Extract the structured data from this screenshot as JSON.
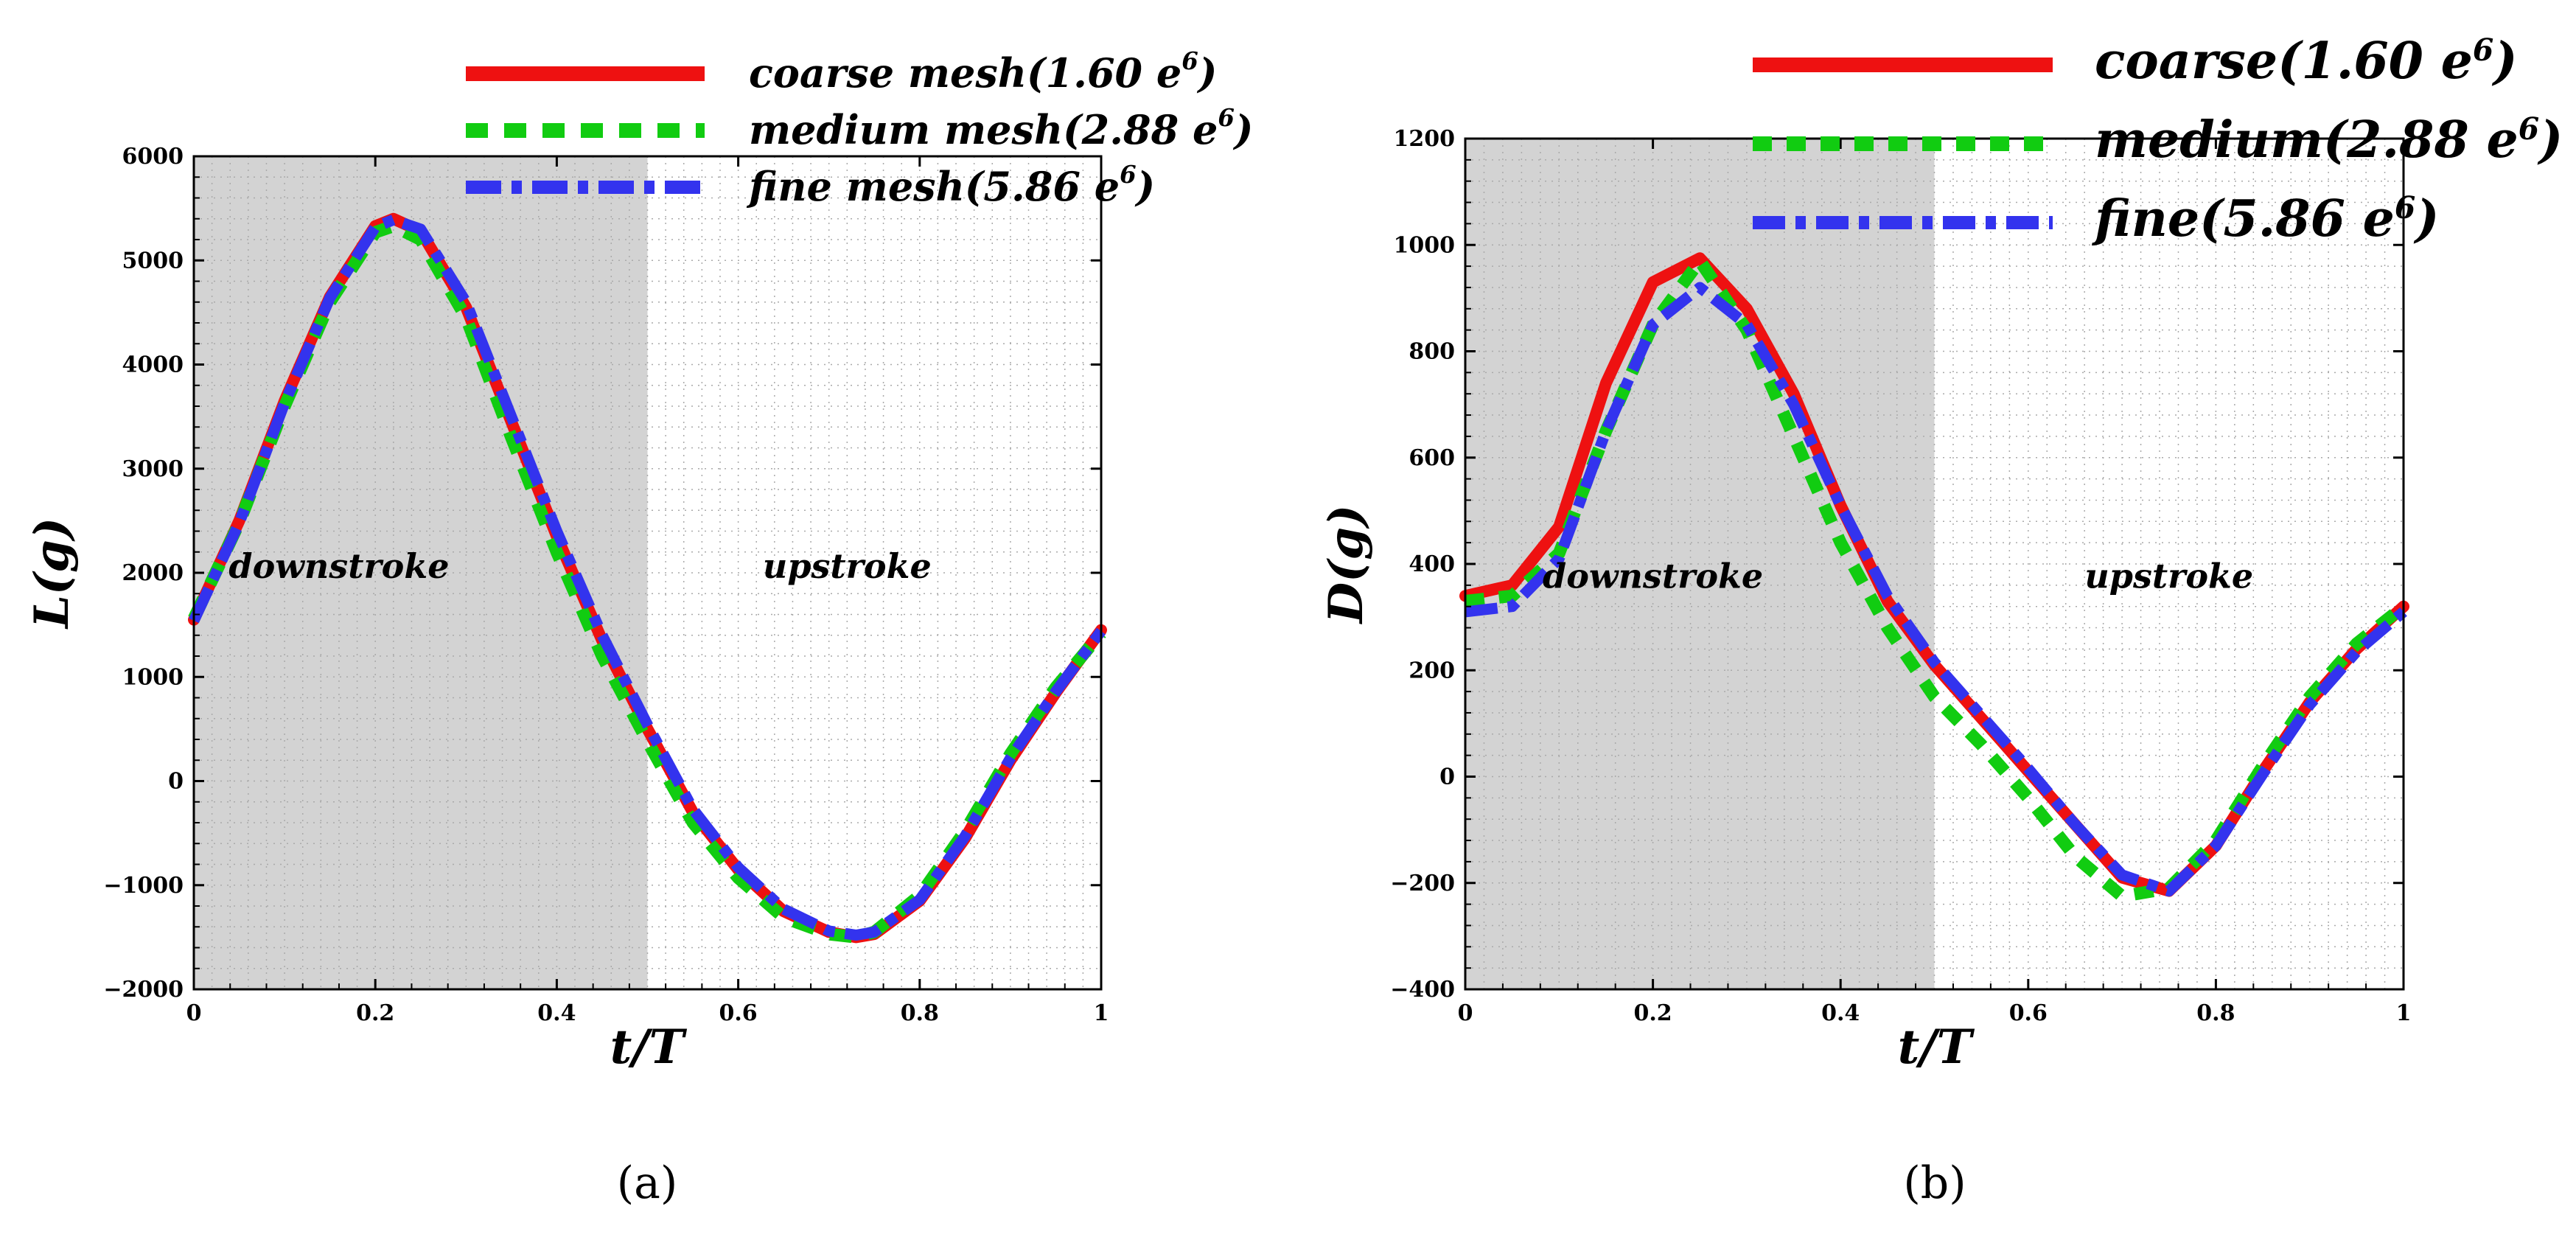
{
  "figure_label": "Lift and drag force histories over one flapping cycle for three mesh resolutions",
  "chart_data": [
    {
      "type": "line",
      "panel_label": "(a)",
      "xlabel": "t/T",
      "ylabel": "L(g)",
      "xlim": [
        0,
        1
      ],
      "ylim": [
        -2000,
        6000
      ],
      "xticks": [
        "0",
        "0.2",
        "0.4",
        "0.6",
        "0.8",
        "1"
      ],
      "yticks": [
        "6000",
        "5000",
        "4000",
        "3000",
        "2000",
        "1000",
        "0",
        "−1000",
        "−2000"
      ],
      "shaded_region": {
        "x_start": 0,
        "x_end": 0.5,
        "color": "#d3d3d3"
      },
      "annotations": [
        {
          "text": "downstroke",
          "x": 0.16,
          "y": 1950
        },
        {
          "text": "upstroke",
          "x": 0.72,
          "y": 1950
        }
      ],
      "grid": true,
      "legend_position": "top-center",
      "series": [
        {
          "name_base": "coarse mesh(1.60 e",
          "name_exp": "6",
          "name_close": ")",
          "color": "#ee1111",
          "style": "solid",
          "x": [
            0,
            0.05,
            0.1,
            0.15,
            0.2,
            0.22,
            0.25,
            0.3,
            0.35,
            0.4,
            0.45,
            0.5,
            0.55,
            0.6,
            0.65,
            0.7,
            0.73,
            0.75,
            0.8,
            0.85,
            0.9,
            0.95,
            1.0
          ],
          "y": [
            1550,
            2500,
            3650,
            4650,
            5330,
            5400,
            5280,
            4550,
            3450,
            2350,
            1350,
            500,
            -300,
            -850,
            -1250,
            -1450,
            -1500,
            -1470,
            -1150,
            -550,
            200,
            850,
            1450
          ]
        },
        {
          "name_base": "medium mesh(2.88 e",
          "name_exp": "6",
          "name_close": ")",
          "color": "#11cc11",
          "style": "dashed",
          "x": [
            0,
            0.05,
            0.1,
            0.15,
            0.2,
            0.22,
            0.25,
            0.3,
            0.35,
            0.4,
            0.45,
            0.5,
            0.55,
            0.6,
            0.65,
            0.7,
            0.73,
            0.75,
            0.8,
            0.85,
            0.9,
            0.95,
            1.0
          ],
          "y": [
            1560,
            2480,
            3600,
            4600,
            5270,
            5330,
            5200,
            4450,
            3300,
            2200,
            1200,
            380,
            -400,
            -930,
            -1310,
            -1470,
            -1500,
            -1450,
            -1100,
            -480,
            260,
            900,
            1420
          ]
        },
        {
          "name_base": "fine mesh(5.86 e",
          "name_exp": "6",
          "name_close": ")",
          "color": "#3333ee",
          "style": "dashdot",
          "x": [
            0,
            0.05,
            0.1,
            0.15,
            0.2,
            0.22,
            0.25,
            0.3,
            0.35,
            0.4,
            0.45,
            0.5,
            0.55,
            0.6,
            0.65,
            0.7,
            0.73,
            0.75,
            0.8,
            0.85,
            0.9,
            0.95,
            1.0
          ],
          "y": [
            1540,
            2480,
            3630,
            4640,
            5320,
            5390,
            5300,
            4600,
            3500,
            2400,
            1400,
            540,
            -270,
            -830,
            -1230,
            -1440,
            -1480,
            -1450,
            -1140,
            -530,
            220,
            860,
            1440
          ]
        }
      ]
    },
    {
      "type": "line",
      "panel_label": "(b)",
      "xlabel": "t/T",
      "ylabel": "D(g)",
      "xlim": [
        0,
        1
      ],
      "ylim": [
        -400,
        1200
      ],
      "xticks": [
        "0",
        "0.2",
        "0.4",
        "0.6",
        "0.8",
        "1"
      ],
      "yticks": [
        "1200",
        "1000",
        "800",
        "600",
        "400",
        "200",
        "0",
        "−200",
        "−400"
      ],
      "shaded_region": {
        "x_start": 0,
        "x_end": 0.5,
        "color": "#d3d3d3"
      },
      "annotations": [
        {
          "text": "downstroke",
          "x": 0.2,
          "y": 355
        },
        {
          "text": "upstroke",
          "x": 0.75,
          "y": 355
        }
      ],
      "grid": true,
      "legend_position": "top-right",
      "series": [
        {
          "name_base": "coarse(1.60 e",
          "name_exp": "6",
          "name_close": ")",
          "color": "#ee1111",
          "style": "solid",
          "x": [
            0,
            0.05,
            0.1,
            0.15,
            0.2,
            0.25,
            0.3,
            0.35,
            0.4,
            0.45,
            0.5,
            0.55,
            0.6,
            0.65,
            0.7,
            0.75,
            0.8,
            0.85,
            0.9,
            0.95,
            1.0
          ],
          "y": [
            340,
            360,
            470,
            740,
            930,
            975,
            880,
            720,
            510,
            330,
            210,
            110,
            10,
            -90,
            -190,
            -215,
            -130,
            10,
            140,
            240,
            320
          ]
        },
        {
          "name_base": "medium(2.88 e",
          "name_exp": "6",
          "name_close": ")",
          "color": "#11cc11",
          "style": "dashed",
          "x": [
            0,
            0.05,
            0.1,
            0.15,
            0.2,
            0.25,
            0.3,
            0.35,
            0.4,
            0.45,
            0.5,
            0.55,
            0.6,
            0.65,
            0.7,
            0.75,
            0.8,
            0.85,
            0.9,
            0.95,
            1.0
          ],
          "y": [
            330,
            340,
            420,
            650,
            850,
            970,
            840,
            640,
            440,
            280,
            150,
            60,
            -40,
            -150,
            -225,
            -210,
            -120,
            20,
            150,
            250,
            320
          ]
        },
        {
          "name_base": "fine(5.86 e",
          "name_exp": "6",
          "name_close": ")",
          "color": "#3333ee",
          "style": "dashdot",
          "x": [
            0,
            0.05,
            0.1,
            0.15,
            0.2,
            0.25,
            0.3,
            0.35,
            0.4,
            0.45,
            0.5,
            0.55,
            0.6,
            0.65,
            0.7,
            0.75,
            0.8,
            0.85,
            0.9,
            0.95,
            1.0
          ],
          "y": [
            310,
            320,
            410,
            650,
            850,
            920,
            850,
            700,
            510,
            340,
            215,
            115,
            15,
            -90,
            -185,
            -215,
            -130,
            5,
            135,
            235,
            310
          ]
        }
      ]
    }
  ]
}
